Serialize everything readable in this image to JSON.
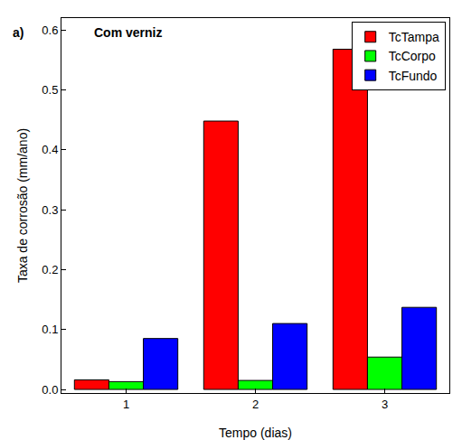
{
  "chart_data": {
    "type": "bar",
    "x_label": "Tempo (dias)",
    "y_label": "Taxa de corrosão (mm/ano)",
    "annotations": [
      "a)",
      "Com verniz"
    ],
    "categories": [
      "1",
      "2",
      "3"
    ],
    "series": [
      {
        "name": "TcTampa",
        "color": "#ff0000",
        "values": [
          0.016,
          0.448,
          0.568
        ]
      },
      {
        "name": "TcCorpo",
        "color": "#00ff00",
        "values": [
          0.013,
          0.015,
          0.054
        ]
      },
      {
        "name": "TcFundo",
        "color": "#0000ff",
        "values": [
          0.085,
          0.11,
          0.137
        ]
      }
    ],
    "ylim": [
      -0.006,
      0.62
    ],
    "yticks": [
      {
        "value": 0,
        "label": "0.0"
      },
      0.1,
      0.2,
      0.3,
      0.4,
      0.5,
      0.6
    ],
    "grid": false,
    "legend": "top right"
  }
}
